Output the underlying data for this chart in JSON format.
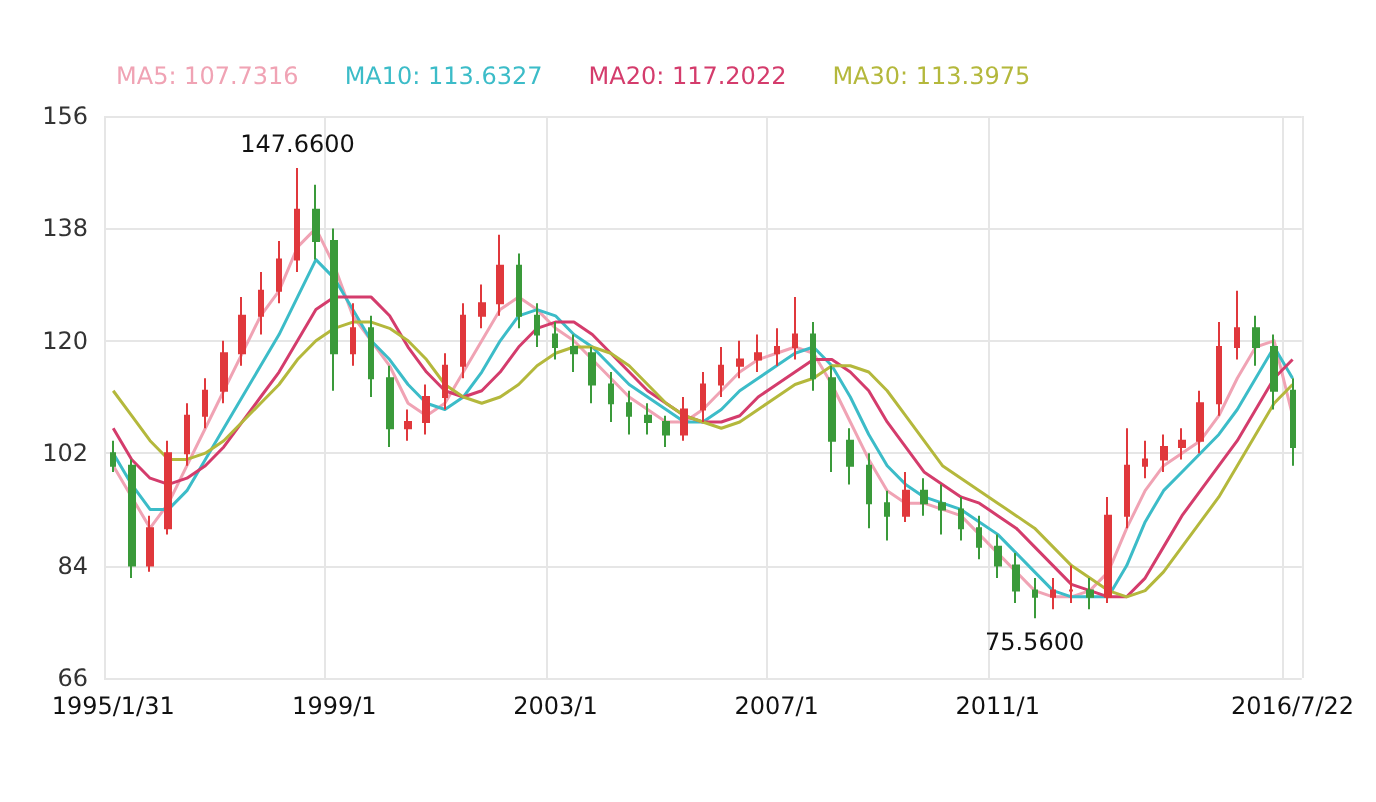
{
  "chart_data": {
    "type": "candlestick",
    "categories": [
      "1995/1/31",
      null,
      null,
      null,
      null,
      null,
      null,
      null,
      null,
      null,
      null,
      null,
      "1999/1",
      null,
      null,
      null,
      null,
      null,
      null,
      null,
      null,
      null,
      null,
      null,
      "2003/1",
      null,
      null,
      null,
      null,
      null,
      null,
      null,
      null,
      null,
      null,
      null,
      "2007/1",
      null,
      null,
      null,
      null,
      null,
      null,
      null,
      null,
      null,
      null,
      null,
      "2011/1",
      null,
      null,
      null,
      null,
      null,
      null,
      null,
      null,
      null,
      null,
      null,
      null,
      null,
      null,
      null,
      "2016/7/22"
    ],
    "ohlc": [
      [
        102,
        104,
        99,
        100
      ],
      [
        100,
        101,
        82,
        84
      ],
      [
        84,
        92,
        83,
        90
      ],
      [
        90,
        104,
        89,
        102
      ],
      [
        102,
        110,
        100,
        108
      ],
      [
        108,
        114,
        106,
        112
      ],
      [
        112,
        120,
        110,
        118
      ],
      [
        118,
        127,
        116,
        124
      ],
      [
        124,
        131,
        121,
        128
      ],
      [
        128,
        136,
        126,
        133
      ],
      [
        133,
        147.66,
        131,
        141
      ],
      [
        141,
        145,
        133,
        136
      ],
      [
        136,
        138,
        112,
        118
      ],
      [
        118,
        126,
        116,
        122
      ],
      [
        122,
        124,
        111,
        114
      ],
      [
        114,
        116,
        103,
        106
      ],
      [
        106,
        109,
        104,
        107
      ],
      [
        107,
        113,
        105,
        111
      ],
      [
        111,
        118,
        109,
        116
      ],
      [
        116,
        126,
        114,
        124
      ],
      [
        124,
        129,
        122,
        126
      ],
      [
        126,
        137,
        124,
        132
      ],
      [
        132,
        134,
        122,
        124
      ],
      [
        124,
        126,
        119,
        121
      ],
      [
        121,
        123,
        117,
        119
      ],
      [
        119,
        121,
        115,
        118
      ],
      [
        118,
        119,
        110,
        113
      ],
      [
        113,
        115,
        107,
        110
      ],
      [
        110,
        112,
        105,
        108
      ],
      [
        108,
        110,
        105,
        107
      ],
      [
        107,
        108,
        103,
        105
      ],
      [
        105,
        111,
        104,
        109
      ],
      [
        109,
        115,
        107,
        113
      ],
      [
        113,
        119,
        111,
        116
      ],
      [
        116,
        120,
        114,
        117
      ],
      [
        117,
        121,
        115,
        118
      ],
      [
        118,
        122,
        116,
        119
      ],
      [
        119,
        127,
        117,
        121
      ],
      [
        121,
        123,
        112,
        114
      ],
      [
        114,
        116,
        99,
        104
      ],
      [
        104,
        106,
        97,
        100
      ],
      [
        100,
        102,
        90,
        94
      ],
      [
        94,
        96,
        88,
        92
      ],
      [
        92,
        99,
        91,
        96
      ],
      [
        96,
        98,
        92,
        94
      ],
      [
        94,
        97,
        89,
        93
      ],
      [
        93,
        95,
        88,
        90
      ],
      [
        90,
        92,
        85,
        87
      ],
      [
        87,
        89,
        82,
        84
      ],
      [
        84,
        86,
        78,
        80
      ],
      [
        80,
        82,
        75.56,
        79
      ],
      [
        79,
        82,
        77,
        80
      ],
      [
        80,
        84,
        78,
        80
      ],
      [
        80,
        82,
        77,
        79
      ],
      [
        79,
        95,
        78,
        92
      ],
      [
        92,
        106,
        90,
        100
      ],
      [
        100,
        104,
        98,
        101
      ],
      [
        101,
        105,
        99,
        103
      ],
      [
        103,
        106,
        101,
        104
      ],
      [
        104,
        112,
        102,
        110
      ],
      [
        110,
        123,
        108,
        119
      ],
      [
        119,
        128,
        117,
        122
      ],
      [
        122,
        124,
        116,
        119
      ],
      [
        119,
        121,
        109,
        112
      ],
      [
        112,
        114,
        100,
        103
      ]
    ],
    "series": [
      {
        "type": "line",
        "name": "MA5: 107.7316",
        "color": "#f0a3b4",
        "values": [
          100,
          95,
          90,
          94,
          100,
          106,
          112,
          118,
          124,
          128,
          135,
          138,
          132,
          124,
          120,
          116,
          110,
          108,
          110,
          115,
          120,
          125,
          127,
          125,
          122,
          120,
          117,
          114,
          111,
          109,
          107,
          107,
          109,
          112,
          115,
          117,
          118,
          119,
          118,
          113,
          107,
          101,
          96,
          94,
          94,
          93,
          92,
          89,
          86,
          83,
          80,
          79,
          79,
          80,
          83,
          90,
          96,
          100,
          102,
          104,
          108,
          114,
          119,
          120,
          108
        ]
      },
      {
        "type": "line",
        "name": "MA10: 113.6327",
        "color": "#3cbcc8",
        "values": [
          102,
          97,
          93,
          93,
          96,
          101,
          106,
          111,
          116,
          121,
          127,
          133,
          130,
          125,
          120,
          117,
          113,
          110,
          109,
          111,
          115,
          120,
          124,
          125,
          124,
          121,
          119,
          116,
          113,
          111,
          109,
          107,
          107,
          109,
          112,
          114,
          116,
          118,
          119,
          116,
          111,
          105,
          100,
          97,
          95,
          94,
          93,
          91,
          89,
          86,
          83,
          80,
          79,
          79,
          79,
          84,
          91,
          96,
          99,
          102,
          105,
          109,
          114,
          119,
          114
        ]
      },
      {
        "type": "line",
        "name": "MA20: 117.2022",
        "color": "#d43c6c",
        "values": [
          106,
          101,
          98,
          97,
          98,
          100,
          103,
          107,
          111,
          115,
          120,
          125,
          127,
          127,
          127,
          124,
          119,
          115,
          112,
          111,
          112,
          115,
          119,
          122,
          123,
          123,
          121,
          118,
          115,
          112,
          110,
          108,
          107,
          107,
          108,
          111,
          113,
          115,
          117,
          117,
          115,
          112,
          107,
          103,
          99,
          97,
          95,
          94,
          92,
          90,
          87,
          84,
          81,
          80,
          79,
          79,
          82,
          87,
          92,
          96,
          100,
          104,
          109,
          114,
          117
        ]
      },
      {
        "type": "line",
        "name": "MA30: 113.3975",
        "color": "#b4b83c",
        "values": [
          112,
          108,
          104,
          101,
          101,
          102,
          104,
          107,
          110,
          113,
          117,
          120,
          122,
          123,
          123,
          122,
          120,
          117,
          113,
          111,
          110,
          111,
          113,
          116,
          118,
          119,
          119,
          118,
          116,
          113,
          110,
          108,
          107,
          106,
          107,
          109,
          111,
          113,
          114,
          116,
          116,
          115,
          112,
          108,
          104,
          100,
          98,
          96,
          94,
          92,
          90,
          87,
          84,
          82,
          80,
          79,
          80,
          83,
          87,
          91,
          95,
          100,
          105,
          110,
          113
        ]
      }
    ],
    "ylim": [
      66,
      156
    ],
    "yticks": [
      66,
      84,
      102,
      120,
      138,
      156
    ],
    "annotations": [
      {
        "text": "147.6600",
        "y": 147.66
      },
      {
        "text": "75.5600",
        "y": 75.56
      }
    ],
    "grid": true,
    "legend": "top left",
    "marker": "none",
    "line_style": "solid"
  }
}
